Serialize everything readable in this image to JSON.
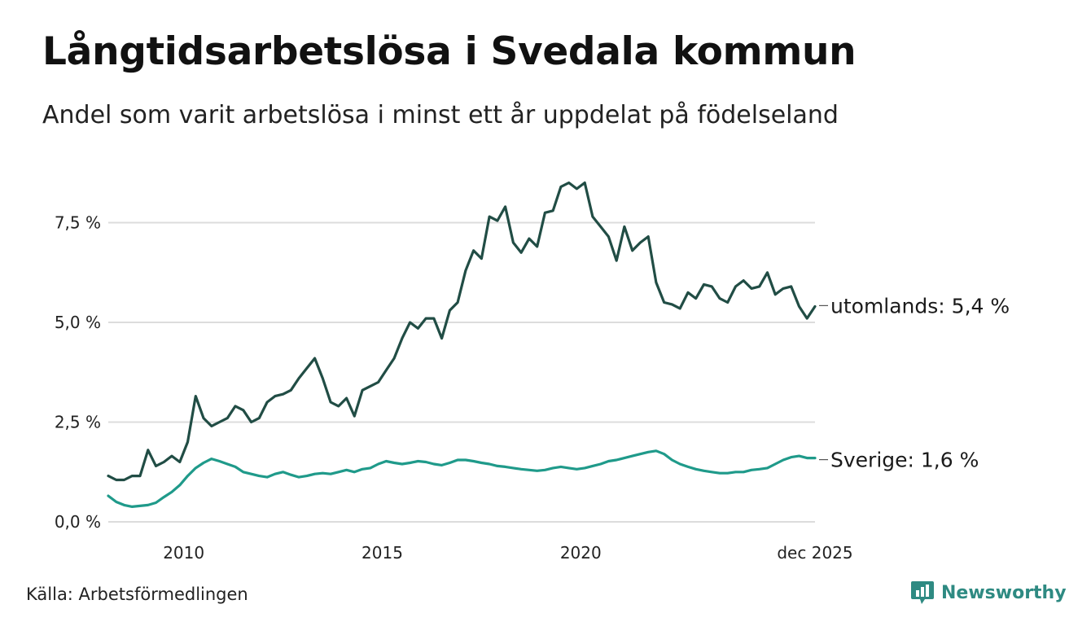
{
  "header": {
    "title": "Långtidsarbetslösa i Svedala kommun",
    "subtitle": "Andel som varit arbetslösa i minst ett år uppdelat på födelseland"
  },
  "footer": {
    "source": "Källa: Arbetsförmedlingen",
    "brand": "Newsworthy"
  },
  "colors": {
    "utomlands": "#214d45",
    "sverige": "#1f9a8a",
    "grid": "#dcdcdc",
    "brand": "#2e8a82"
  },
  "chart_data": {
    "type": "line",
    "title": "Långtidsarbetslösa i Svedala kommun",
    "subtitle": "Andel som varit arbetslösa i minst ett år uppdelat på födelseland",
    "xlabel": "",
    "ylabel": "",
    "xlim": [
      2008.1,
      2025.9
    ],
    "ylim": [
      0,
      9
    ],
    "grid": true,
    "x_ticks": [
      {
        "value": 2010,
        "label": "2010"
      },
      {
        "value": 2015,
        "label": "2015"
      },
      {
        "value": 2020,
        "label": "2020"
      },
      {
        "value": 2025.9,
        "label": "dec 2025"
      }
    ],
    "y_ticks": [
      {
        "value": 0,
        "label": "0,0 %"
      },
      {
        "value": 2.5,
        "label": "2,5 %"
      },
      {
        "value": 5,
        "label": "5,0 %"
      },
      {
        "value": 7.5,
        "label": "7,5 %"
      }
    ],
    "series": [
      {
        "name": "utomlands",
        "label": "utomlands: 5,4 %",
        "color": "#214d45",
        "x": [
          2008.1,
          2008.3,
          2008.5,
          2008.7,
          2008.9,
          2009.1,
          2009.3,
          2009.5,
          2009.7,
          2009.9,
          2010.1,
          2010.3,
          2010.5,
          2010.7,
          2010.9,
          2011.1,
          2011.3,
          2011.5,
          2011.7,
          2011.9,
          2012.1,
          2012.3,
          2012.5,
          2012.7,
          2012.9,
          2013.1,
          2013.3,
          2013.5,
          2013.7,
          2013.9,
          2014.1,
          2014.3,
          2014.5,
          2014.7,
          2014.9,
          2015.1,
          2015.3,
          2015.5,
          2015.7,
          2015.9,
          2016.1,
          2016.3,
          2016.5,
          2016.7,
          2016.9,
          2017.1,
          2017.3,
          2017.5,
          2017.7,
          2017.9,
          2018.1,
          2018.3,
          2018.5,
          2018.7,
          2018.9,
          2019.1,
          2019.3,
          2019.5,
          2019.7,
          2019.9,
          2020.1,
          2020.3,
          2020.5,
          2020.7,
          2020.9,
          2021.1,
          2021.3,
          2021.5,
          2021.7,
          2021.9,
          2022.1,
          2022.3,
          2022.5,
          2022.7,
          2022.9,
          2023.1,
          2023.3,
          2023.5,
          2023.7,
          2023.9,
          2024.1,
          2024.3,
          2024.5,
          2024.7,
          2024.9,
          2025.1,
          2025.3,
          2025.5,
          2025.7,
          2025.9
        ],
        "values": [
          1.15,
          1.05,
          1.05,
          1.15,
          1.15,
          1.8,
          1.4,
          1.5,
          1.65,
          1.5,
          2.0,
          3.15,
          2.6,
          2.4,
          2.5,
          2.6,
          2.9,
          2.8,
          2.5,
          2.6,
          3.0,
          3.15,
          3.2,
          3.3,
          3.6,
          3.85,
          4.1,
          3.6,
          3.0,
          2.9,
          3.1,
          2.65,
          3.3,
          3.4,
          3.5,
          3.8,
          4.1,
          4.6,
          5.0,
          4.85,
          5.1,
          5.1,
          4.6,
          5.3,
          5.5,
          6.3,
          6.8,
          6.6,
          7.65,
          7.55,
          7.9,
          7.0,
          6.75,
          7.1,
          6.9,
          7.75,
          7.8,
          8.4,
          8.5,
          8.35,
          8.5,
          7.65,
          7.4,
          7.15,
          6.55,
          7.4,
          6.8,
          7.0,
          7.15,
          6.0,
          5.5,
          5.45,
          5.35,
          5.75,
          5.6,
          5.95,
          5.9,
          5.6,
          5.5,
          5.9,
          6.05,
          5.85,
          5.9,
          6.25,
          5.7,
          5.85,
          5.9,
          5.4,
          5.1,
          5.4
        ]
      },
      {
        "name": "sverige",
        "label": "Sverige: 1,6 %",
        "color": "#1f9a8a",
        "x": [
          2008.1,
          2008.3,
          2008.5,
          2008.7,
          2008.9,
          2009.1,
          2009.3,
          2009.5,
          2009.7,
          2009.9,
          2010.1,
          2010.3,
          2010.5,
          2010.7,
          2010.9,
          2011.1,
          2011.3,
          2011.5,
          2011.7,
          2011.9,
          2012.1,
          2012.3,
          2012.5,
          2012.7,
          2012.9,
          2013.1,
          2013.3,
          2013.5,
          2013.7,
          2013.9,
          2014.1,
          2014.3,
          2014.5,
          2014.7,
          2014.9,
          2015.1,
          2015.3,
          2015.5,
          2015.7,
          2015.9,
          2016.1,
          2016.3,
          2016.5,
          2016.7,
          2016.9,
          2017.1,
          2017.3,
          2017.5,
          2017.7,
          2017.9,
          2018.1,
          2018.3,
          2018.5,
          2018.7,
          2018.9,
          2019.1,
          2019.3,
          2019.5,
          2019.7,
          2019.9,
          2020.1,
          2020.3,
          2020.5,
          2020.7,
          2020.9,
          2021.1,
          2021.3,
          2021.5,
          2021.7,
          2021.9,
          2022.1,
          2022.3,
          2022.5,
          2022.7,
          2022.9,
          2023.1,
          2023.3,
          2023.5,
          2023.7,
          2023.9,
          2024.1,
          2024.3,
          2024.5,
          2024.7,
          2024.9,
          2025.1,
          2025.3,
          2025.5,
          2025.7,
          2025.9
        ],
        "values": [
          0.65,
          0.5,
          0.42,
          0.38,
          0.4,
          0.42,
          0.48,
          0.62,
          0.75,
          0.92,
          1.15,
          1.35,
          1.48,
          1.58,
          1.52,
          1.45,
          1.38,
          1.25,
          1.2,
          1.15,
          1.12,
          1.2,
          1.25,
          1.18,
          1.12,
          1.15,
          1.2,
          1.22,
          1.2,
          1.25,
          1.3,
          1.25,
          1.32,
          1.35,
          1.45,
          1.52,
          1.48,
          1.45,
          1.48,
          1.52,
          1.5,
          1.45,
          1.42,
          1.48,
          1.55,
          1.55,
          1.52,
          1.48,
          1.45,
          1.4,
          1.38,
          1.35,
          1.32,
          1.3,
          1.28,
          1.3,
          1.35,
          1.38,
          1.35,
          1.32,
          1.35,
          1.4,
          1.45,
          1.52,
          1.55,
          1.6,
          1.65,
          1.7,
          1.75,
          1.78,
          1.7,
          1.55,
          1.45,
          1.38,
          1.32,
          1.28,
          1.25,
          1.22,
          1.22,
          1.25,
          1.25,
          1.3,
          1.32,
          1.35,
          1.45,
          1.55,
          1.62,
          1.65,
          1.6,
          1.6
        ]
      }
    ]
  }
}
